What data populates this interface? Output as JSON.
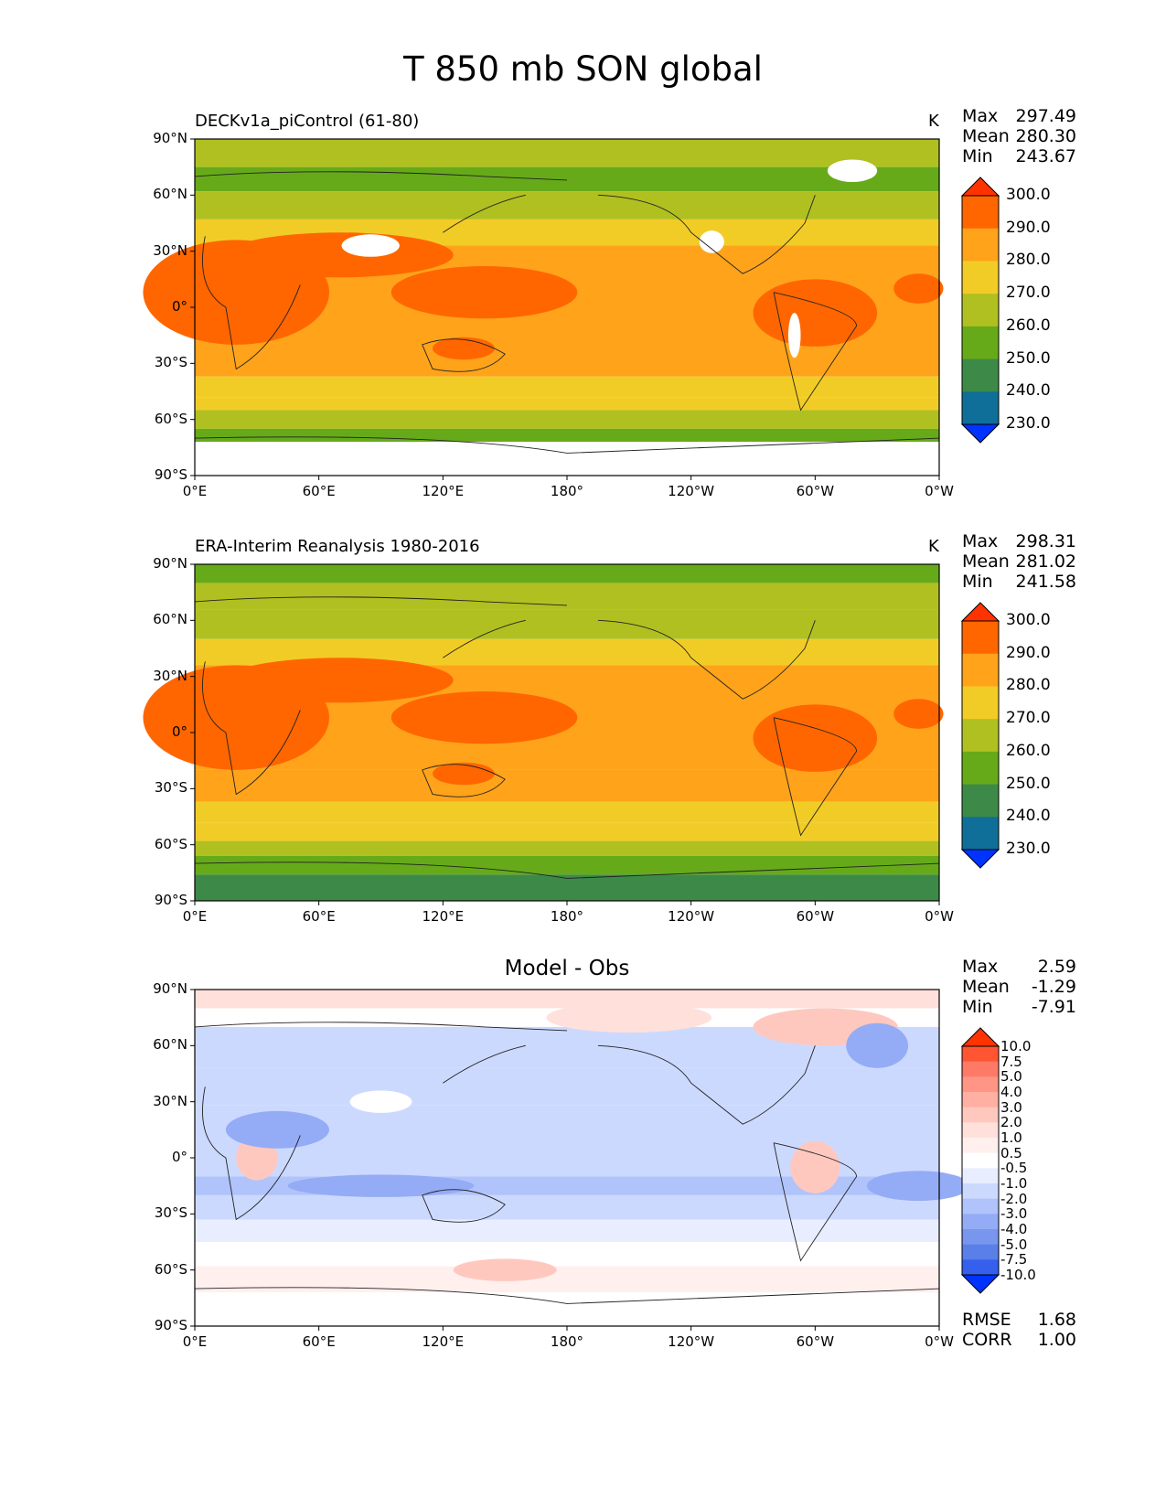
{
  "figure_title": "T 850 mb SON global",
  "x_ticks": [
    "0°E",
    "60°E",
    "120°E",
    "180°",
    "120°W",
    "60°W",
    "0°W"
  ],
  "y_ticks": [
    "90°N",
    "60°N",
    "30°N",
    "0°",
    "30°S",
    "60°S",
    "90°S"
  ],
  "panels": [
    {
      "title": "DECKv1a_piControl (61-80)",
      "units": "K",
      "stats": [
        {
          "label": "Max",
          "value": "297.49"
        },
        {
          "label": "Mean",
          "value": "280.30"
        },
        {
          "label": "Min",
          "value": "243.67"
        }
      ],
      "colorbar": {
        "labels": [
          "300.0",
          "290.0",
          "280.0",
          "270.0",
          "260.0",
          "250.0",
          "240.0",
          "230.0"
        ],
        "colors": [
          "#ff3300",
          "#ff6600",
          "#ffa31a",
          "#f2cc26",
          "#b0c020",
          "#66aa1a",
          "#3d8a48",
          "#0f6f99",
          "#0033ff"
        ]
      }
    },
    {
      "title": "ERA-Interim Reanalysis 1980-2016",
      "units": "K",
      "stats": [
        {
          "label": "Max",
          "value": "298.31"
        },
        {
          "label": "Mean",
          "value": "281.02"
        },
        {
          "label": "Min",
          "value": "241.58"
        }
      ],
      "colorbar": {
        "labels": [
          "300.0",
          "290.0",
          "280.0",
          "270.0",
          "260.0",
          "250.0",
          "240.0",
          "230.0"
        ],
        "colors": [
          "#ff3300",
          "#ff6600",
          "#ffa31a",
          "#f2cc26",
          "#b0c020",
          "#66aa1a",
          "#3d8a48",
          "#0f6f99",
          "#0033ff"
        ]
      }
    },
    {
      "title": "Model - Obs",
      "units": "",
      "stats": [
        {
          "label": "Max",
          "value": "2.59"
        },
        {
          "label": "Mean",
          "value": "-1.29"
        },
        {
          "label": "Min",
          "value": "-7.91"
        }
      ],
      "metrics": [
        {
          "label": "RMSE",
          "value": "1.68"
        },
        {
          "label": "CORR",
          "value": "1.00"
        }
      ],
      "colorbar": {
        "labels": [
          "10.0",
          "7.5",
          "5.0",
          "4.0",
          "3.0",
          "2.0",
          "1.0",
          "0.5",
          "-0.5",
          "-1.0",
          "-2.0",
          "-3.0",
          "-4.0",
          "-5.0",
          "-7.5",
          "-10.0"
        ],
        "colors": [
          "#ff3300",
          "#ff5533",
          "#ff7a66",
          "#ff9685",
          "#ffb0a3",
          "#ffc8bf",
          "#ffe0db",
          "#fff0ee",
          "#ffffff",
          "#e8eeff",
          "#ccd9ff",
          "#b0c3fb",
          "#94acf5",
          "#7896ee",
          "#5a7fe8",
          "#3560ee",
          "#0033ff"
        ]
      }
    }
  ],
  "chart_data": [
    {
      "type": "heatmap",
      "title": "DECKv1a_piControl (61-80)",
      "units": "K",
      "xlim": [
        0,
        360
      ],
      "ylim": [
        -90,
        90
      ],
      "x_ticks": [
        0,
        60,
        120,
        180,
        240,
        300,
        360
      ],
      "y_ticks": [
        90,
        60,
        30,
        0,
        -30,
        -60,
        -90
      ],
      "levels": [
        230,
        240,
        250,
        260,
        270,
        280,
        290,
        300
      ],
      "field": {
        "latitudes": [
          90,
          75,
          60,
          45,
          30,
          15,
          0,
          -15,
          -30,
          -45,
          -60,
          -75,
          -90
        ],
        "typical_values": [
          253,
          258,
          263,
          270,
          280,
          284,
          285,
          282,
          276,
          270,
          263,
          255,
          null
        ]
      },
      "stats": {
        "max": 297.49,
        "mean": 280.3,
        "min": 243.67
      }
    },
    {
      "type": "heatmap",
      "title": "ERA-Interim Reanalysis 1980-2016",
      "units": "K",
      "xlim": [
        0,
        360
      ],
      "ylim": [
        -90,
        90
      ],
      "x_ticks": [
        0,
        60,
        120,
        180,
        240,
        300,
        360
      ],
      "y_ticks": [
        90,
        60,
        30,
        0,
        -30,
        -60,
        -90
      ],
      "levels": [
        230,
        240,
        250,
        260,
        270,
        280,
        290,
        300
      ],
      "field": {
        "latitudes": [
          90,
          75,
          60,
          45,
          30,
          15,
          0,
          -15,
          -30,
          -45,
          -60,
          -75,
          -90
        ],
        "typical_values": [
          255,
          258,
          263,
          270,
          281,
          285,
          286,
          283,
          277,
          270,
          263,
          252,
          245
        ]
      },
      "stats": {
        "max": 298.31,
        "mean": 281.02,
        "min": 241.58
      }
    },
    {
      "type": "heatmap",
      "title": "Model - Obs",
      "xlim": [
        0,
        360
      ],
      "ylim": [
        -90,
        90
      ],
      "x_ticks": [
        0,
        60,
        120,
        180,
        240,
        300,
        360
      ],
      "y_ticks": [
        90,
        60,
        30,
        0,
        -30,
        -60,
        -90
      ],
      "levels": [
        -10,
        -7.5,
        -5,
        -4,
        -3,
        -2,
        -1,
        -0.5,
        0.5,
        1,
        2,
        3,
        4,
        5,
        7.5,
        10
      ],
      "field": {
        "latitudes": [
          90,
          75,
          60,
          45,
          30,
          15,
          0,
          -15,
          -30,
          -45,
          -60,
          -75,
          -90
        ],
        "typical_values": [
          1.0,
          -0.5,
          -2.0,
          -1.5,
          -2.0,
          -1.5,
          -1.5,
          -2.0,
          -1.5,
          -0.5,
          0.3,
          0.5,
          null
        ]
      },
      "stats": {
        "max": 2.59,
        "mean": -1.29,
        "min": -7.91,
        "rmse": 1.68,
        "corr": 1.0
      }
    }
  ]
}
